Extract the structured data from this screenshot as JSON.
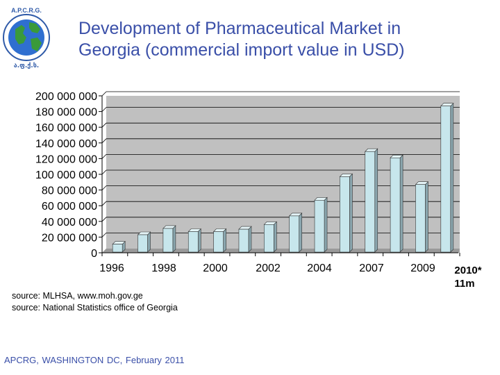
{
  "logo": {
    "top_text": "A.P.C.R.G.",
    "bottom_text": "ა.ფ.ქ.ს."
  },
  "header": {
    "title_line1": "Development of Pharmaceutical Market in",
    "title_line2": "Georgia (commercial import value in USD)"
  },
  "chart_data": {
    "type": "bar",
    "title": "Development of Pharmaceutical Market in Georgia (commercial import value in USD)",
    "xlabel": "",
    "ylabel": "",
    "ylim": [
      0,
      200000000
    ],
    "y_ticks": [
      "0",
      "20 000 000",
      "40 000 000",
      "60 000 000",
      "80 000 000",
      "100 000 000",
      "120 000 000",
      "140 000 000",
      "160 000 000",
      "180 000 000",
      "200 000 000"
    ],
    "x_tick_labels": [
      "1996",
      "1998",
      "2000",
      "2002",
      "2004",
      "2007",
      "2009"
    ],
    "last_label_line1": "2010*",
    "last_label_line2": "11m",
    "values": [
      11000000,
      23000000,
      31000000,
      27000000,
      27000000,
      30000000,
      36000000,
      47000000,
      67000000,
      97000000,
      129000000,
      121000000,
      87000000,
      187000000
    ],
    "colors": {
      "bar": "#c7e6ec",
      "bar_side": "#8aa6ae",
      "bar_top": "#e4f4f7",
      "plot_bg": "#c0c0c0",
      "plot_wall": "#a9a9a9"
    }
  },
  "sources": [
    "source:  MLHSA, www.moh.gov.ge",
    "source:  National Statistics office of Georgia"
  ],
  "footer": {
    "text": "APCRG, WASHINGTON DC, February   2011"
  }
}
